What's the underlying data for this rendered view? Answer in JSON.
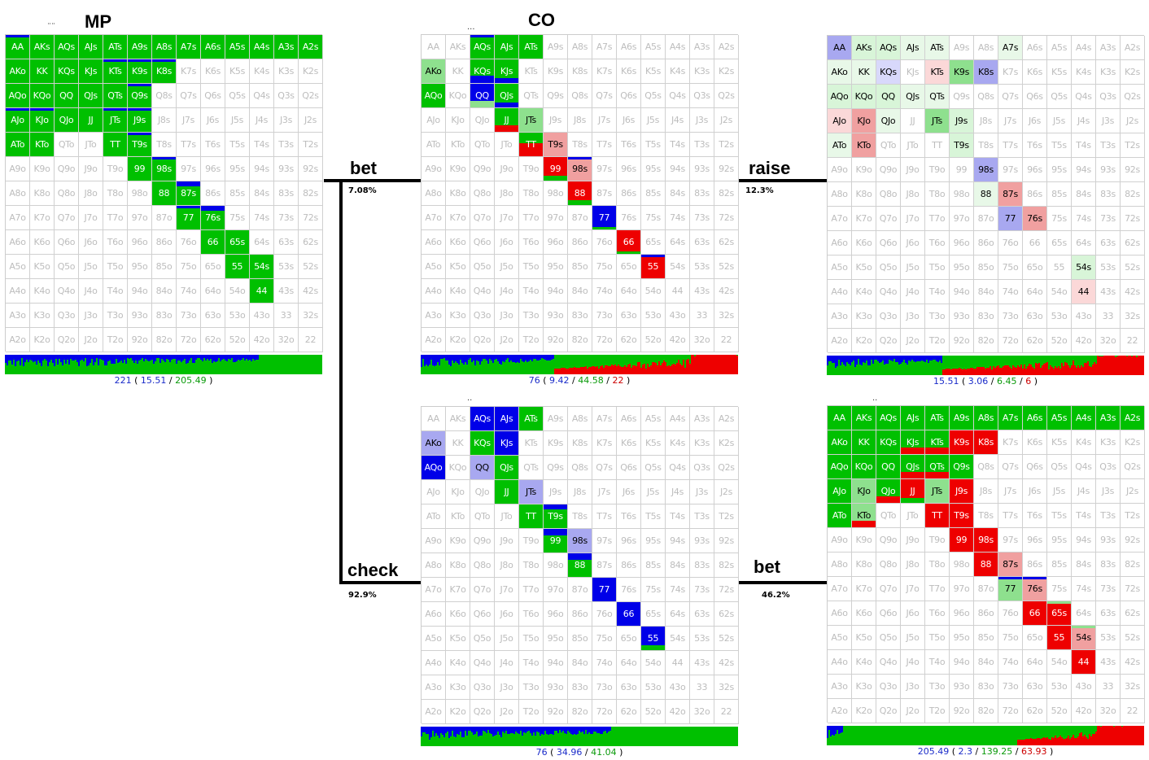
{
  "titles": {
    "mp": "MP",
    "co": "CO"
  },
  "actions": {
    "bet1": {
      "label": "bet",
      "pct": "7.08%"
    },
    "check": {
      "label": "check",
      "pct": "92.9%"
    },
    "raise": {
      "label": "raise",
      "pct": "12.3%"
    },
    "bet2": {
      "label": "bet",
      "pct": "46.2%"
    }
  },
  "stats": {
    "mp": {
      "total": "221",
      "a": "15.51",
      "b": "205.49"
    },
    "co_bet": {
      "total": "76",
      "a": "9.42",
      "b": "44.58",
      "c": "22"
    },
    "mp_raise": {
      "total": "15.51",
      "a": "3.06",
      "b": "6.45",
      "c": "6"
    },
    "co_check": {
      "total": "76",
      "a": "34.96",
      "b": "41.04"
    },
    "mp_bet": {
      "total": "205.49",
      "a": "2.3",
      "b": "139.25",
      "c": "63.93"
    }
  },
  "colors": {
    "green": "#00c000",
    "blue": "#0000e8",
    "red": "#ee0000",
    "lightgreen": "#8ee08e",
    "lightred": "#f0a0a0",
    "lightblue": "#a8a8f0",
    "palegreen": "#d8f5d8",
    "palered": "#fbd8d8",
    "paleblue": "#d8d8fb"
  },
  "grids": {
    "mp": {
      "AA": "G:b3",
      "AKs": "G",
      "AQs": "G",
      "AJs": "G",
      "ATs": "G",
      "A9s": "G",
      "A8s": "G",
      "A7s": "G",
      "A6s": "G",
      "A5s": "G",
      "A4s": "G",
      "A3s": "G",
      "A2s": "G",
      "AKo": "G",
      "KK": "G",
      "KQs": "G",
      "KJs": "G",
      "KTs": "G:b3",
      "K9s": "G:b3",
      "K8s": "G:b3",
      "AQo": "G",
      "KQo": "G",
      "QQ": "G",
      "QJs": "G",
      "QTs": "G",
      "Q9s": "G:b3",
      "AJo": "G:b3",
      "KJo": "G:b3",
      "QJo": "G",
      "JJ": "G",
      "JTs": "G:b3",
      "J9s": "G:b3",
      "ATo": "G",
      "KTo": "G",
      "TT": "G",
      "T9s": "G:b3",
      "99": "G",
      "98s": "G:b3",
      "88": "G",
      "87s": "G:b6",
      "77": "G:b3",
      "76s": "G:b6",
      "66": "G",
      "65s": "G",
      "55": "G",
      "54s": "G",
      "44": "G"
    },
    "co_bet": {
      "AQs": "G:b3",
      "AJs": "G",
      "ATs": "G",
      "AKo": "LG",
      "KQs": "G:bb9",
      "KJs": "G:bb6",
      "AQo": "G",
      "QQ": "B:bottomLG",
      "QJs": "G:bb6",
      "JJ": "G:r8",
      "JTs": "LG",
      "TT": "G:r16",
      "T9s": "LR",
      "99": "R:g6",
      "98s": "LR:b3",
      "88": "R:g6",
      "77": "B:g3",
      "66": "R:g3",
      "55": "R:b3"
    },
    "mp_raise": {
      "AA": "LB",
      "AKs": "PG",
      "AQs": "PG",
      "AJs": "PG2",
      "ATs": "PG2",
      "A7s": "PG2",
      "AKo": "PG2",
      "KK": "PG2",
      "KQs": "PB",
      "KTs": "PR",
      "K9s": "LG",
      "K8s": "LB",
      "AQo": "PG",
      "KQo": "PG",
      "QQ": "PG",
      "QJs": "PG2",
      "QTs": "PG2",
      "AJo": "PR",
      "KJo": "LR",
      "QJo": "PG2",
      "JTs": "LG",
      "J9s": "PG",
      "ATo": "PG2",
      "KTo": "LR",
      "T9s": "PG",
      "98s": "LB",
      "88": "PG2",
      "87s": "LR",
      "77": "LB",
      "76s": "LR",
      "54s": "PG",
      "44": "PR"
    },
    "co_check": {
      "AQs": "B",
      "AJs": "B",
      "ATs": "G",
      "AKo": "LB",
      "KQs": "G",
      "KJs": "B",
      "AQo": "B",
      "QQ": "LB",
      "QJs": "G",
      "JJ": "G",
      "JTs": "LB",
      "TT": "G",
      "T9s": "G:b6",
      "99": "G:b8",
      "98s": "LB",
      "88": "G:b8",
      "77": "B",
      "66": "B",
      "55": "B:g6"
    },
    "mp_bet": {
      "AA": "G",
      "AKs": "G",
      "AQs": "G",
      "AJs": "G",
      "ATs": "G",
      "A9s": "G",
      "A8s": "G",
      "A7s": "G",
      "A6s": "G",
      "A5s": "G",
      "A4s": "G",
      "A3s": "G",
      "A2s": "G",
      "AKo": "G",
      "KK": "G",
      "KQs": "G",
      "KJs": "G:r8",
      "KTs": "G:r8",
      "K9s": "R",
      "K8s": "R",
      "AQo": "G",
      "KQo": "G",
      "QQ": "G",
      "QJs": "G:r8",
      "QTs": "G:r8",
      "Q9s": "G",
      "AJo": "G",
      "KJo": "LG",
      "QJo": "G:r8",
      "JJ": "R:g6",
      "JTs": "LG",
      "J9s": "R",
      "ATo": "G",
      "KTo": "LG:r8",
      "TT": "R",
      "T9s": "R",
      "99": "R",
      "98s": "R",
      "88": "R",
      "87s": "LR",
      "77": "LG:b3",
      "76s": "LR:b3",
      "66": "R",
      "65s": "R:lg3",
      "55": "R",
      "54s": "LR:lg3",
      "44": "R"
    }
  }
}
